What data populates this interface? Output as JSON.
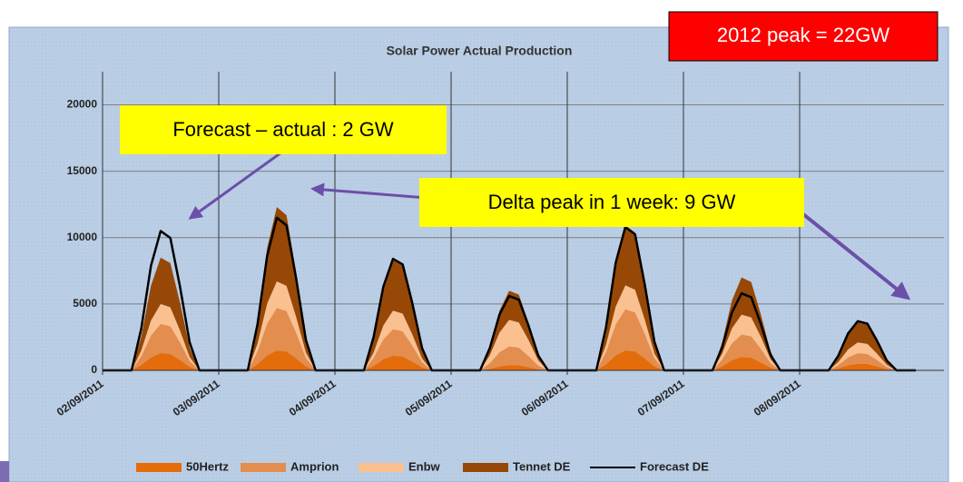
{
  "chart_data": {
    "type": "stacked-area",
    "title": "Solar Power Actual Production",
    "annotations": [
      "2012 peak = 22GW",
      "Forecast – actual : 2 GW",
      "Delta peak in 1 week: 9 GW"
    ],
    "x": [
      0,
      2,
      4,
      6,
      8,
      10,
      12,
      14,
      16,
      18,
      20,
      22,
      24,
      26,
      28,
      30,
      32,
      34,
      36,
      38,
      40,
      42,
      44,
      46,
      48,
      50,
      52,
      54,
      56,
      58,
      60,
      62,
      64,
      66,
      68,
      70,
      72,
      74,
      76,
      78,
      80,
      82,
      84,
      86,
      88,
      90,
      92,
      94,
      96,
      98,
      100,
      102,
      104,
      106,
      108,
      110,
      112,
      114,
      116,
      118,
      120,
      122,
      124,
      126,
      128,
      130,
      132,
      134,
      136,
      138,
      140,
      142,
      144,
      146,
      148,
      150,
      152,
      154,
      156,
      158,
      160,
      162,
      164,
      166,
      168
    ],
    "xlim": [
      0,
      168
    ],
    "xticks": [
      {
        "value": 0,
        "label": "02/09/2011"
      },
      {
        "value": 24,
        "label": "03/09/2011"
      },
      {
        "value": 48,
        "label": "04/09/2011"
      },
      {
        "value": 72,
        "label": "05/09/2011"
      },
      {
        "value": 96,
        "label": "06/09/2011"
      },
      {
        "value": 120,
        "label": "07/09/2011"
      },
      {
        "value": 144,
        "label": "08/09/2011"
      }
    ],
    "ylim": [
      0,
      22500
    ],
    "yticks": [
      0,
      5000,
      10000,
      15000,
      20000
    ],
    "grid": true,
    "legend": "bottom",
    "series": [
      {
        "name": "50Hertz",
        "color": "#e46c0a",
        "values": [
          0,
          0,
          0,
          0,
          390,
          975,
          1300,
          1235,
          780,
          260,
          0,
          0,
          0,
          0,
          0,
          0,
          450,
          1125,
          1500,
          1425,
          900,
          300,
          0,
          0,
          0,
          0,
          0,
          0,
          330,
          825,
          1100,
          1045,
          660,
          220,
          0,
          0,
          0,
          0,
          0,
          0,
          120,
          300,
          400,
          380,
          240,
          80,
          0,
          0,
          0,
          0,
          0,
          0,
          450,
          1125,
          1500,
          1425,
          900,
          300,
          0,
          0,
          0,
          0,
          0,
          0,
          300,
          750,
          1000,
          950,
          600,
          200,
          0,
          0,
          0,
          0,
          0,
          0,
          150,
          375,
          500,
          475,
          300,
          100,
          0,
          0,
          0
        ]
      },
      {
        "name": "Amprion",
        "color": "#e38d4f",
        "values": [
          0,
          0,
          0,
          0,
          660,
          1650,
          2200,
          2090,
          1320,
          440,
          0,
          0,
          0,
          0,
          0,
          0,
          960,
          2400,
          3200,
          3040,
          1920,
          640,
          0,
          0,
          0,
          0,
          0,
          0,
          600,
          1500,
          2000,
          1900,
          1200,
          400,
          0,
          0,
          0,
          0,
          0,
          0,
          420,
          1050,
          1400,
          1330,
          840,
          280,
          0,
          0,
          0,
          0,
          0,
          0,
          930,
          2325,
          3100,
          2945,
          1860,
          620,
          0,
          0,
          0,
          0,
          0,
          0,
          510,
          1275,
          1700,
          1615,
          1020,
          340,
          0,
          0,
          0,
          0,
          0,
          0,
          240,
          600,
          800,
          760,
          480,
          160,
          0,
          0,
          0
        ]
      },
      {
        "name": "Enbw",
        "color": "#fac090",
        "values": [
          0,
          0,
          0,
          0,
          450,
          1125,
          1500,
          1425,
          900,
          300,
          0,
          0,
          0,
          0,
          0,
          0,
          600,
          1500,
          2000,
          1900,
          1200,
          400,
          0,
          0,
          0,
          0,
          0,
          0,
          420,
          1050,
          1400,
          1330,
          840,
          280,
          0,
          0,
          0,
          0,
          0,
          0,
          600,
          1500,
          2000,
          1900,
          1200,
          400,
          0,
          0,
          0,
          0,
          0,
          0,
          540,
          1350,
          1800,
          1710,
          1080,
          360,
          0,
          0,
          0,
          0,
          0,
          0,
          450,
          1125,
          1500,
          1425,
          900,
          300,
          0,
          0,
          0,
          0,
          0,
          0,
          240,
          600,
          800,
          760,
          480,
          160,
          0,
          0,
          0
        ]
      },
      {
        "name": "Tennet DE",
        "color": "#974806",
        "values": [
          0,
          0,
          0,
          0,
          1050,
          2625,
          3500,
          3325,
          2100,
          700,
          0,
          0,
          0,
          0,
          0,
          0,
          1680,
          4200,
          5600,
          5320,
          3360,
          1120,
          0,
          0,
          0,
          0,
          0,
          0,
          1140,
          2850,
          3800,
          3610,
          2280,
          760,
          0,
          0,
          0,
          0,
          0,
          0,
          660,
          1650,
          2200,
          2090,
          1320,
          440,
          0,
          0,
          0,
          0,
          0,
          0,
          1350,
          3375,
          4500,
          4275,
          2700,
          900,
          0,
          0,
          0,
          0,
          0,
          0,
          840,
          2100,
          2800,
          2660,
          1680,
          560,
          0,
          0,
          0,
          0,
          0,
          0,
          450,
          1125,
          1500,
          1425,
          900,
          300,
          0,
          0,
          0
        ]
      },
      {
        "name": "Forecast DE",
        "color": "#000000",
        "line": true,
        "values": [
          0,
          0,
          0,
          0,
          3150,
          7875,
          10500,
          9975,
          6300,
          2100,
          0,
          0,
          0,
          0,
          0,
          0,
          3450,
          8625,
          11500,
          10925,
          6900,
          2300,
          0,
          0,
          0,
          0,
          0,
          0,
          2520,
          6300,
          8400,
          7980,
          5040,
          1680,
          0,
          0,
          0,
          0,
          0,
          0,
          1680,
          4200,
          5600,
          5320,
          3360,
          1120,
          0,
          0,
          0,
          0,
          0,
          0,
          3240,
          8100,
          10800,
          10260,
          6480,
          2160,
          0,
          0,
          0,
          0,
          0,
          0,
          1740,
          4350,
          5800,
          5510,
          3480,
          1160,
          0,
          0,
          0,
          0,
          0,
          0,
          1110,
          2775,
          3700,
          3515,
          2220,
          740,
          0,
          0,
          0
        ]
      }
    ]
  }
}
